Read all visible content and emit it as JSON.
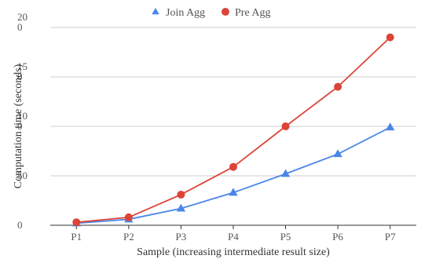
{
  "chart_data": {
    "type": "line",
    "categories": [
      "P1",
      "P2",
      "P3",
      "P4",
      "P5",
      "P6",
      "P7"
    ],
    "series": [
      {
        "name": "Join Agg",
        "color": "#4a86e8",
        "marker": "triangle",
        "values": [
          2,
          6,
          17,
          33,
          52,
          72,
          99
        ]
      },
      {
        "name": "Pre Agg",
        "color": "#db4437",
        "marker": "circle",
        "values": [
          3,
          8,
          31,
          59,
          100,
          140,
          190
        ]
      }
    ],
    "y_ticks": [
      {
        "value": 0,
        "lines": [
          "0"
        ]
      },
      {
        "value": 50,
        "lines": [
          "50"
        ]
      },
      {
        "value": 100,
        "lines": [
          "10",
          "0"
        ]
      },
      {
        "value": 150,
        "lines": [
          "15",
          "0"
        ]
      },
      {
        "value": 200,
        "lines": [
          "20",
          "0"
        ]
      }
    ],
    "ylim": [
      0,
      200
    ],
    "xlabel": "Sample (increasing intermediate result size)",
    "ylabel": "Computation time (seconds)",
    "grid": true,
    "legend_position": "top-center"
  }
}
